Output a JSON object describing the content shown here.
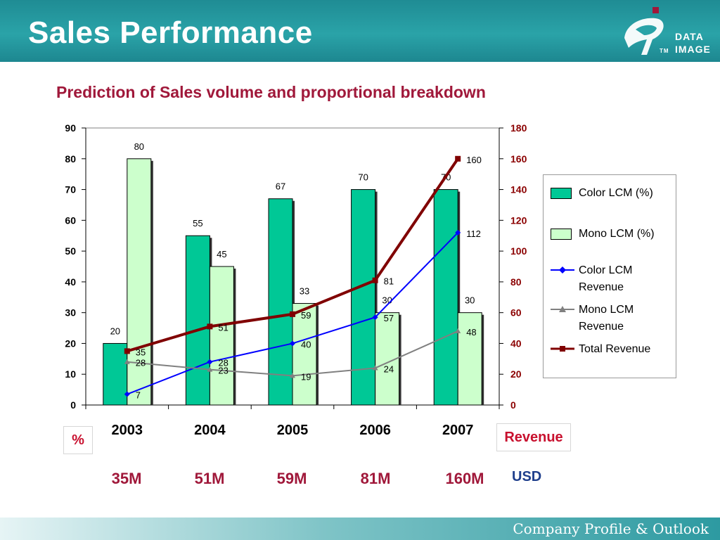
{
  "header": {
    "title": "Sales Performance"
  },
  "logo": {
    "line1": "DATA",
    "line2": "IMAGE",
    "tm": "TM"
  },
  "subtitle": "Prediction of Sales volume and proportional breakdown",
  "labels": {
    "percent": "%",
    "revenue": "Revenue",
    "usd": "USD"
  },
  "totals": [
    "35M",
    "51M",
    "59M",
    "81M",
    "160M"
  ],
  "footer": {
    "text": "Company Profile & Outlook"
  },
  "colors": {
    "color_lcm": "#00c896",
    "mono_lcm": "#ccffcc",
    "color_rev": "#0000ff",
    "mono_rev": "#808080",
    "total_rev": "#800000",
    "right_axis": "#8b0000",
    "subtitle": "#a0183a"
  },
  "chart_data": {
    "type": "bar",
    "categories": [
      "2003",
      "2004",
      "2005",
      "2006",
      "2007"
    ],
    "y_left": {
      "ylim": [
        0,
        90
      ],
      "ticks": [
        0,
        10,
        20,
        30,
        40,
        50,
        60,
        70,
        80,
        90
      ]
    },
    "y_right": {
      "ylim": [
        0,
        180
      ],
      "ticks": [
        0,
        20,
        40,
        60,
        80,
        100,
        120,
        140,
        160,
        180
      ]
    },
    "bar_series": [
      {
        "name": "Color LCM (%)",
        "axis": "left",
        "values": [
          20,
          55,
          67,
          70,
          70
        ]
      },
      {
        "name": "Mono LCM (%)",
        "axis": "left",
        "values": [
          80,
          45,
          33,
          30,
          30
        ]
      }
    ],
    "line_series": [
      {
        "name": "Color LCM Revenue",
        "axis": "right",
        "values": [
          7,
          28,
          40,
          57,
          112
        ],
        "marker": "diamond"
      },
      {
        "name": "Mono LCM Revenue",
        "axis": "right",
        "values": [
          28,
          23,
          19,
          24,
          48
        ],
        "marker": "triangle"
      },
      {
        "name": "Total Revenue",
        "axis": "right",
        "values": [
          35,
          51,
          59,
          81,
          160
        ],
        "marker": "square"
      }
    ],
    "legend": "right"
  }
}
